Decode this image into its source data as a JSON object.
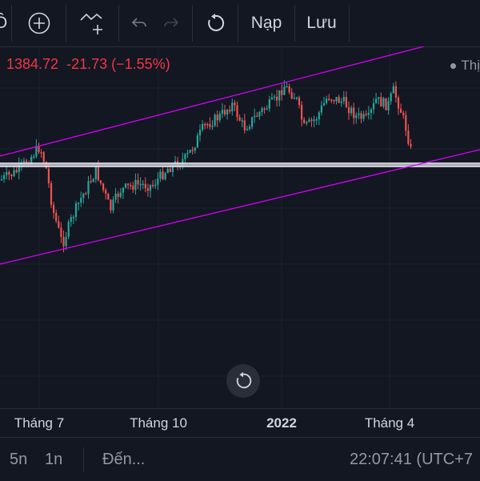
{
  "toolbar": {
    "indicator_partial": "Ô",
    "undo_icon": "undo-icon",
    "redo_icon": "redo-icon",
    "load_label": "Nạp",
    "save_label": "Lưu"
  },
  "price": {
    "last": "1384.72",
    "change": "-21.73",
    "change_pct": "(−1.55%)"
  },
  "legend": {
    "label": "Thị"
  },
  "colors": {
    "up": "#26a69a",
    "down": "#ef5350",
    "channel": "#d500f9",
    "background": "#131722"
  },
  "chart_data": {
    "type": "candlestick",
    "x_ticks": [
      "Tháng 7",
      "Tháng 10",
      "2022",
      "Tháng 4"
    ],
    "price_close_last": 1384.72,
    "overlays": [
      "ascending-channel",
      "horizontal-support-line"
    ]
  },
  "bottom": {
    "range_5y": "5n",
    "range_1y": "1n",
    "goto": "Đến...",
    "time": "22:07:41 (UTC+7"
  }
}
